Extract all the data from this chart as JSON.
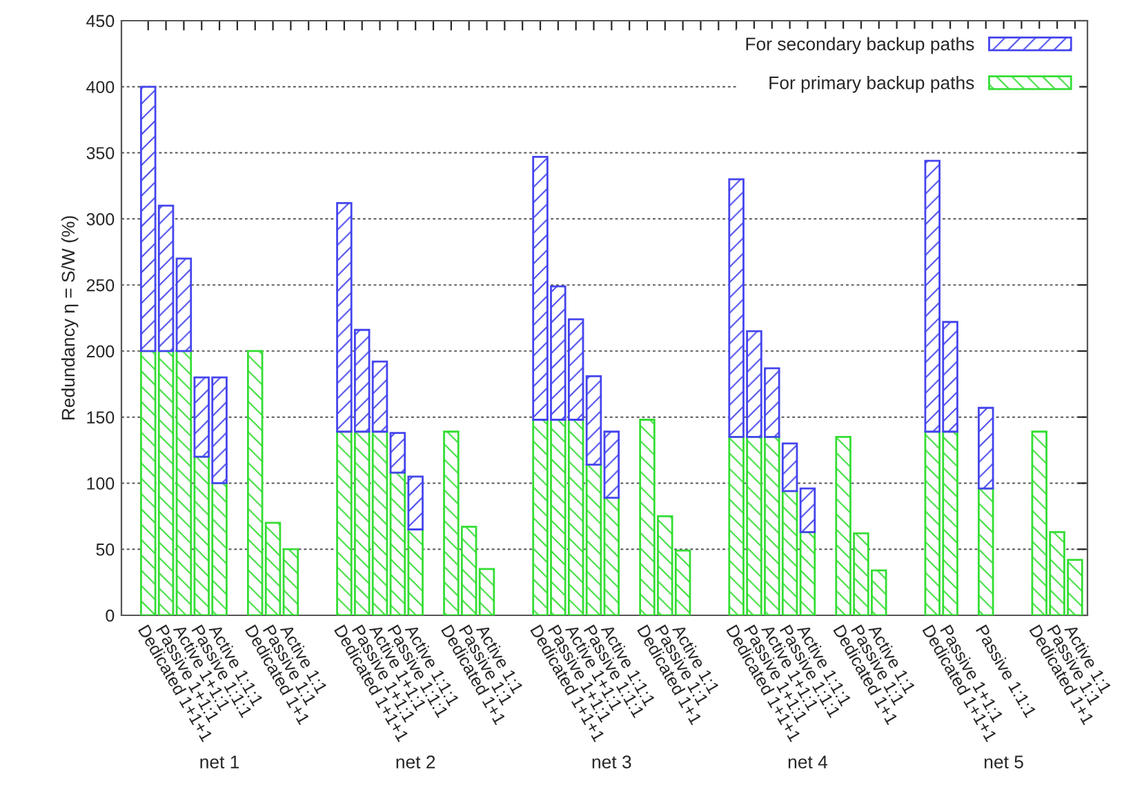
{
  "chart_data": {
    "type": "bar",
    "stacked": true,
    "ylabel": "Redundancy η = S/W (%)",
    "categories": [
      "Dedicated 1+1+1",
      "Passive 1+1:1",
      "Active 1+1:1",
      "Passive 1:1:1",
      "Active 1:1:1",
      null,
      "Dedicated 1+1",
      "Passive 1:1",
      "Active 1:1",
      null,
      null,
      "Dedicated 1+1+1",
      "Passive 1+1:1",
      "Active 1+1:1",
      "Passive 1:1:1",
      "Active 1:1:1",
      null,
      "Dedicated 1+1",
      "Passive 1:1",
      "Active 1:1",
      null,
      null,
      "Dedicated 1+1+1",
      "Passive 1+1:1",
      "Active 1+1:1",
      "Passive 1:1:1",
      "Active 1:1:1",
      null,
      "Dedicated 1+1",
      "Passive 1:1",
      "Active 1:1",
      null,
      null,
      "Dedicated 1+1+1",
      "Passive 1+1:1",
      "Active 1+1:1",
      "Passive 1:1:1",
      "Active 1:1:1",
      null,
      "Dedicated 1+1",
      "Passive 1:1",
      "Active 1:1",
      null,
      null,
      "Dedicated 1+1+1",
      "Passive 1+1:1",
      null,
      "Passive 1:1:1",
      null,
      null,
      "Dedicated 1+1",
      "Passive 1:1",
      "Active 1:1"
    ],
    "series": [
      {
        "name": "For primary backup paths",
        "color": "#33dd33",
        "values": [
          200,
          200,
          200,
          120,
          100,
          null,
          200,
          70,
          50,
          null,
          null,
          139,
          139,
          139,
          108,
          65,
          null,
          139,
          67,
          35,
          null,
          null,
          148,
          148,
          148,
          114,
          89,
          null,
          148,
          75,
          49,
          null,
          null,
          135,
          135,
          135,
          94,
          63,
          null,
          135,
          62,
          34,
          null,
          null,
          139,
          139,
          null,
          96,
          null,
          null,
          139,
          63,
          42
        ]
      },
      {
        "name": "For secondary backup paths",
        "color": "#4444ee",
        "values": [
          200,
          110,
          70,
          60,
          80,
          null,
          null,
          null,
          null,
          null,
          null,
          173,
          77,
          53,
          30,
          40,
          null,
          null,
          null,
          null,
          null,
          null,
          199,
          101,
          76,
          67,
          50,
          null,
          null,
          null,
          null,
          null,
          null,
          195,
          80,
          52,
          36,
          33,
          null,
          null,
          null,
          null,
          null,
          null,
          205,
          83,
          null,
          61,
          null,
          null,
          null,
          null,
          null
        ]
      }
    ],
    "annotations": [
      "net 1",
      "net 2",
      "net 3",
      "net 4",
      "net 5"
    ],
    "ylim": [
      0,
      450
    ],
    "yticks": [
      0,
      50,
      100,
      150,
      200,
      250,
      300,
      350,
      400,
      450
    ],
    "grid": "y",
    "legend": "top right"
  }
}
